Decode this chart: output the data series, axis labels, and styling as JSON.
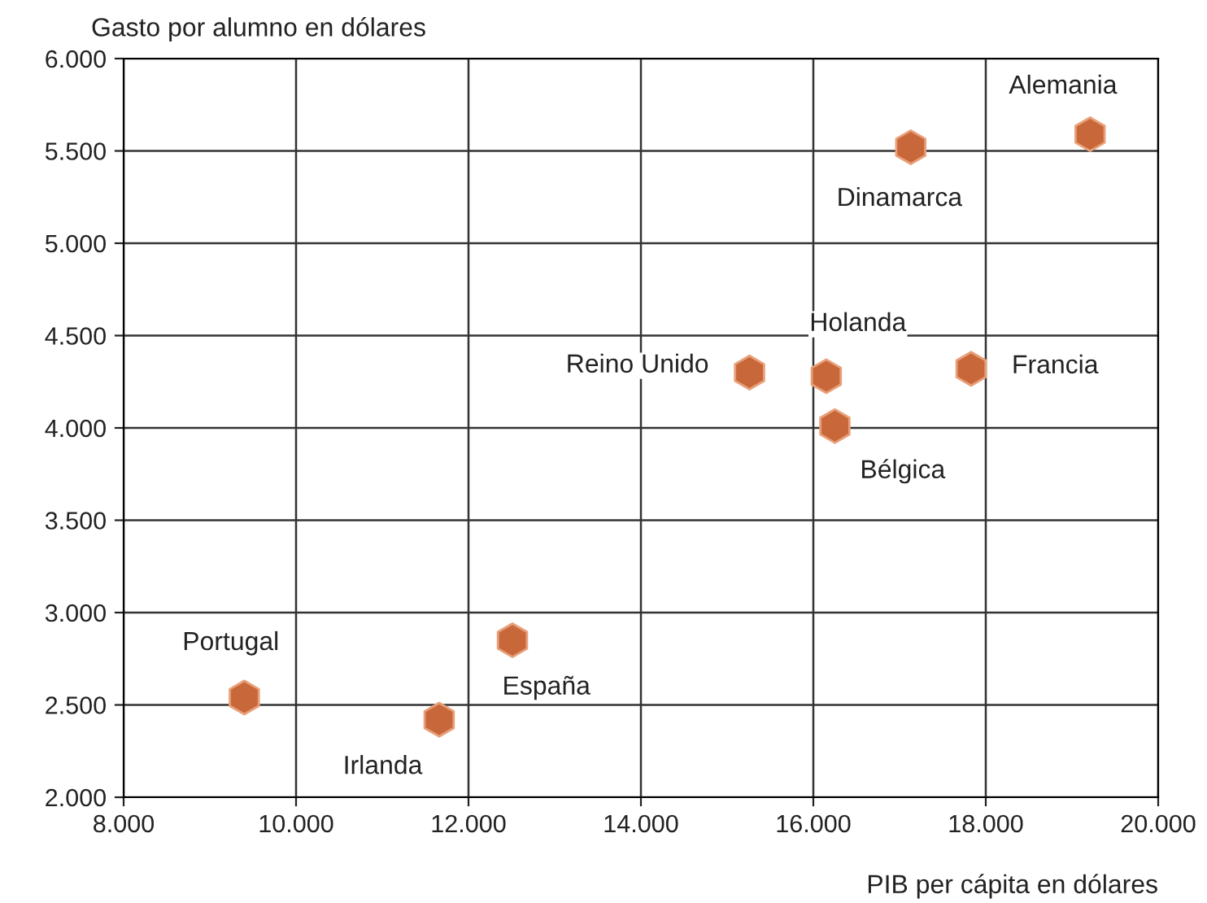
{
  "chart_data": {
    "type": "scatter",
    "xlabel": "PIB per cápita en dólares",
    "ylabel": "Gasto por alumno en dólares",
    "x": [
      9400,
      11660,
      12510,
      15260,
      16150,
      16250,
      17830,
      17130,
      19210
    ],
    "series": [
      {
        "color": "#c8683a",
        "values": [
          2540,
          2420,
          2850,
          4300,
          4280,
          4010,
          4320,
          5520,
          5590
        ]
      }
    ],
    "annotations": [
      {
        "text": "Portugal",
        "x": 9400,
        "y": 2540
      },
      {
        "text": "Irlanda",
        "x": 11660,
        "y": 2420
      },
      {
        "text": "España",
        "x": 12510,
        "y": 2850
      },
      {
        "text": "Reino Unido",
        "x": 15260,
        "y": 4300
      },
      {
        "text": "Holanda",
        "x": 16150,
        "y": 4280
      },
      {
        "text": "Bélgica",
        "x": 16250,
        "y": 4010
      },
      {
        "text": "Francia",
        "x": 17830,
        "y": 4320
      },
      {
        "text": "Dinamarca",
        "x": 17130,
        "y": 5520
      },
      {
        "text": "Alemania",
        "x": 19210,
        "y": 5590
      }
    ],
    "xlim": [
      8000,
      20000
    ],
    "xticks": [
      {
        "value": 8000,
        "label": "8.000"
      },
      {
        "value": 10000,
        "label": "10.000"
      },
      {
        "value": 12000,
        "label": "12.000"
      },
      {
        "value": 14000,
        "label": "14.000"
      },
      {
        "value": 16000,
        "label": "16.000"
      },
      {
        "value": 18000,
        "label": "18.000"
      },
      {
        "value": 20000,
        "label": "20.000"
      }
    ],
    "ylim": [
      2000,
      6000
    ],
    "yticks": [
      {
        "value": 2000,
        "label": "2.000"
      },
      {
        "value": 2500,
        "label": "2.500"
      },
      {
        "value": 3000,
        "label": "3.000"
      },
      {
        "value": 3500,
        "label": "3.500"
      },
      {
        "value": 4000,
        "label": "4.000"
      },
      {
        "value": 4500,
        "label": "4.500"
      },
      {
        "value": 5000,
        "label": "5.000"
      },
      {
        "value": 5500,
        "label": "5.500"
      },
      {
        "value": 6000,
        "label": "6.000"
      }
    ],
    "grid": true
  }
}
